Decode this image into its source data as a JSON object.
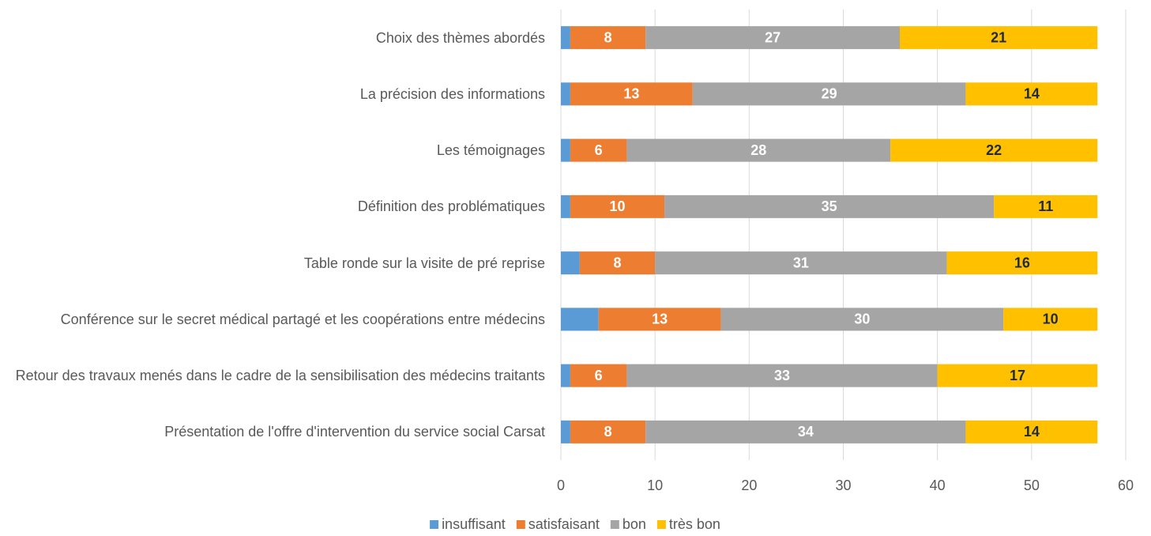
{
  "chart_data": {
    "type": "stacked-barh",
    "categories": [
      "Choix des thèmes abordés",
      "La précision des informations",
      "Les témoignages",
      "Définition des problématiques",
      "Table ronde sur la visite de pré reprise",
      "Conférence sur le secret médical partagé et les coopérations entre médecins",
      "Retour des travaux menés dans le cadre de la sensibilisation des médecins traitants",
      "Présentation de l'offre d'intervention du service social Carsat"
    ],
    "series": [
      {
        "name": "insuffisant",
        "color": "#5b9bd5",
        "data_labels": false,
        "values": [
          1,
          1,
          1,
          1,
          2,
          4,
          1,
          1
        ]
      },
      {
        "name": "satisfaisant",
        "color": "#ed7d31",
        "data_labels": true,
        "label_color": "#ffffff",
        "values": [
          8,
          13,
          6,
          10,
          8,
          13,
          6,
          8
        ]
      },
      {
        "name": "bon",
        "color": "#a5a5a5",
        "data_labels": true,
        "label_color": "#ffffff",
        "values": [
          27,
          29,
          28,
          35,
          31,
          30,
          33,
          34
        ]
      },
      {
        "name": "très bon",
        "color": "#ffc000",
        "data_labels": true,
        "label_color": "#1f2a44",
        "values": [
          21,
          14,
          22,
          11,
          16,
          10,
          17,
          14
        ]
      }
    ],
    "xlim": [
      0,
      60
    ],
    "xticks": [
      0,
      10,
      20,
      30,
      40,
      50,
      60
    ],
    "grid": true,
    "legend": "bottom"
  }
}
